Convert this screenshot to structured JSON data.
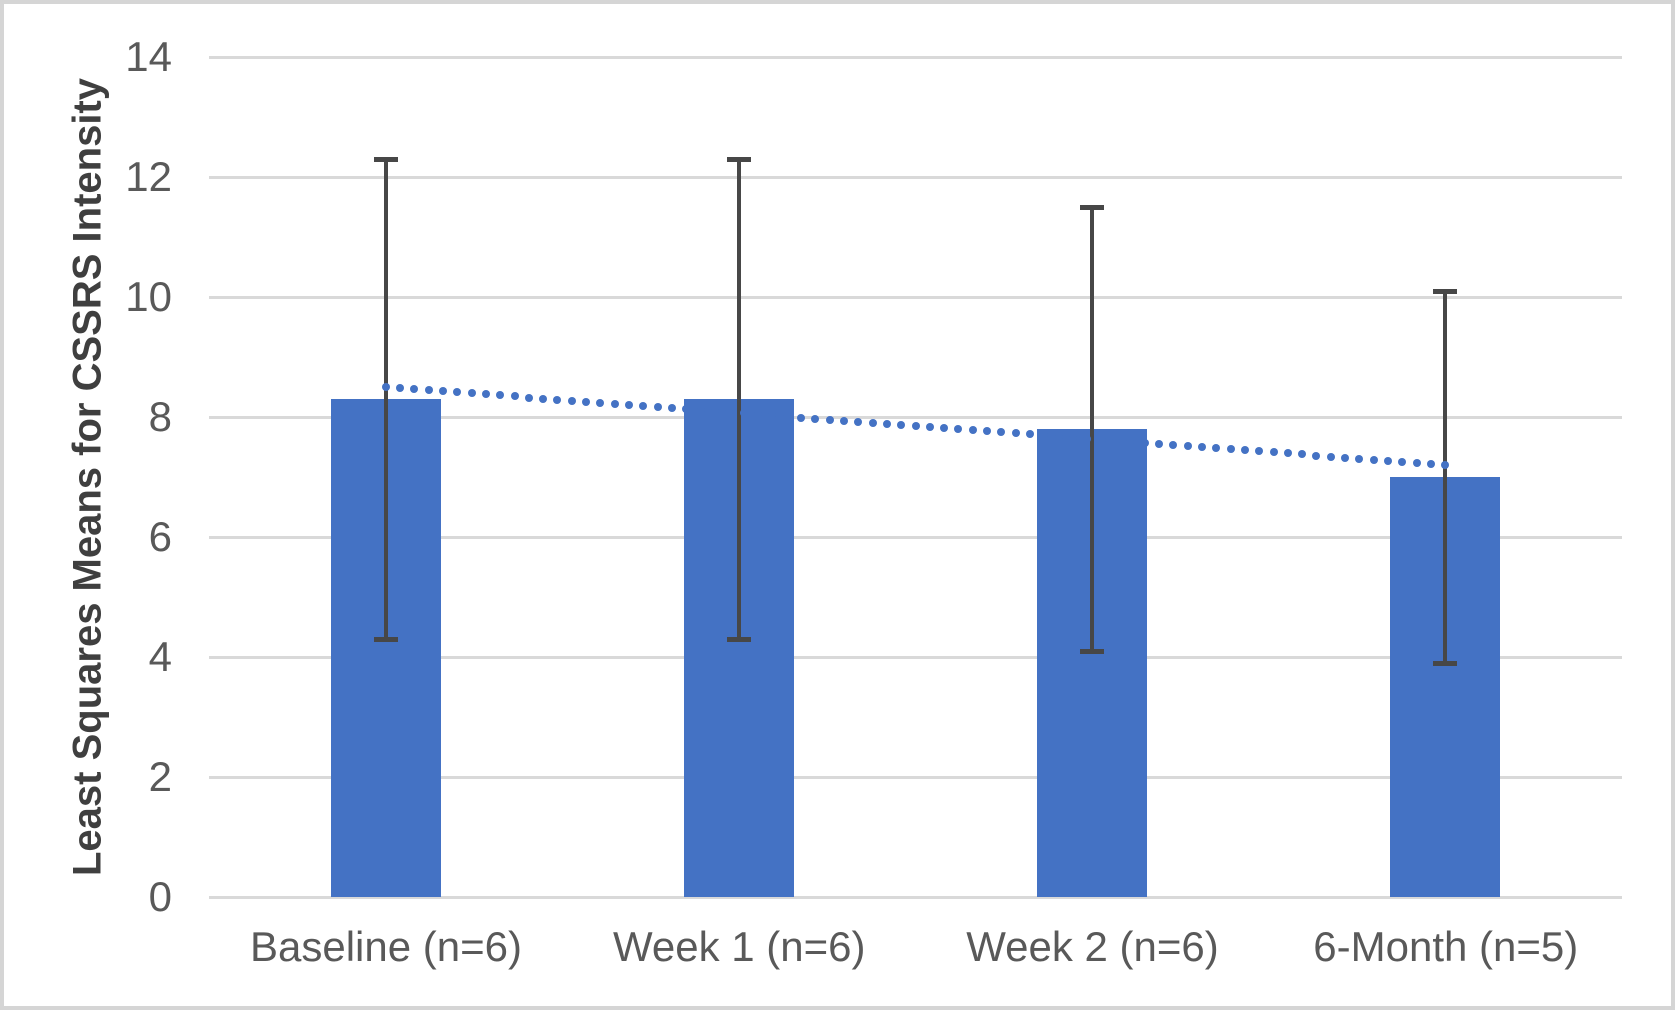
{
  "chart_data": {
    "type": "bar",
    "title": "",
    "xlabel": "",
    "ylabel": "Least Squares Means for CSSRS Intensity",
    "categories": [
      "Baseline (n=6)",
      "Week 1 (n=6)",
      "Week 2 (n=6)",
      "6-Month (n=5)"
    ],
    "values": [
      8.3,
      8.3,
      7.8,
      7.0
    ],
    "error_low": [
      4.3,
      4.3,
      4.1,
      3.9
    ],
    "error_high": [
      12.3,
      12.3,
      11.5,
      10.1
    ],
    "trendline": {
      "style": "dotted",
      "start_value": 8.5,
      "end_value": 7.2,
      "values_at_categories": [
        8.5,
        8.1,
        7.6,
        7.2
      ]
    },
    "ylim": [
      0,
      14
    ],
    "yticks": [
      0,
      2,
      4,
      6,
      8,
      10,
      12,
      14
    ],
    "grid": true,
    "legend": false,
    "colors": {
      "bar": "#4472C4",
      "trend": "#4472C4",
      "error_bar": "#474747",
      "gridline": "#D9D9D9",
      "tick_label": "#595959",
      "axis_title": "#3F3F3F",
      "figure_border": "#D5D5D5",
      "background": "#FFFFFF"
    }
  }
}
